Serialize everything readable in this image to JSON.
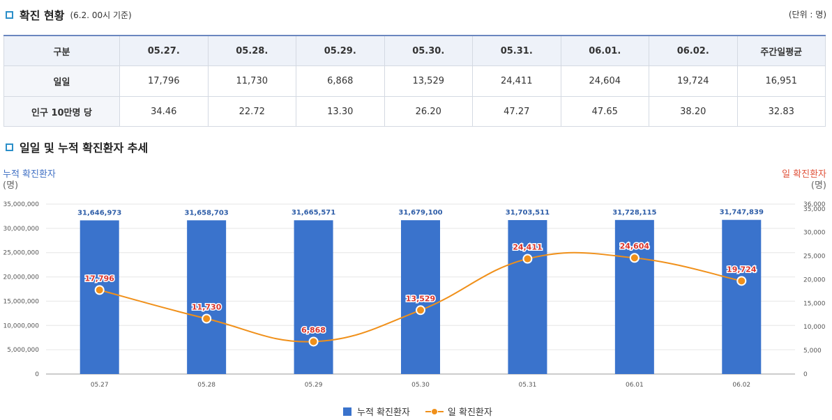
{
  "section1": {
    "title": "확진 현황",
    "subtitle": "(6.2. 00시 기준)",
    "unit": "(단위 : 명)"
  },
  "table": {
    "headers": [
      "구분",
      "05.27.",
      "05.28.",
      "05.29.",
      "05.30.",
      "05.31.",
      "06.01.",
      "06.02.",
      "주간일평균"
    ],
    "rows": [
      {
        "label": "일일",
        "values": [
          "17,796",
          "11,730",
          "6,868",
          "13,529",
          "24,411",
          "24,604",
          "19,724",
          "16,951"
        ]
      },
      {
        "label": "인구 10만명 당",
        "values": [
          "34.46",
          "22.72",
          "13.30",
          "26.20",
          "47.27",
          "47.65",
          "38.20",
          "32.83"
        ]
      }
    ]
  },
  "section2": {
    "title": "일일 및 누적 확진환자 추세"
  },
  "axis": {
    "left_title": "누적 확진환자",
    "left_unit": "(명)",
    "right_title": "일 확진환자",
    "right_unit": "(명)"
  },
  "legend": {
    "bar_label": "누적 확진환자",
    "line_label": "일 확진환자"
  },
  "colors": {
    "bar": "#3a73cc",
    "line": "#f0901a",
    "bar_label": "#2f5ea8",
    "line_label": "#d9342b",
    "accent": "#2b8fc9"
  },
  "chart_data": {
    "type": "bar+line",
    "categories": [
      "05.27",
      "05.28",
      "05.29",
      "05.30",
      "05.31",
      "06.01",
      "06.02"
    ],
    "series": [
      {
        "name": "누적 확진환자",
        "type": "bar",
        "axis": "left",
        "values": [
          31646973,
          31658703,
          31665571,
          31679100,
          31703511,
          31728115,
          31747839
        ],
        "labels": [
          "31,646,973",
          "31,658,703",
          "31,665,571",
          "31,679,100",
          "31,703,511",
          "31,728,115",
          "31,747,839"
        ]
      },
      {
        "name": "일 확진환자",
        "type": "line",
        "axis": "right",
        "values": [
          17796,
          11730,
          6868,
          13529,
          24411,
          24604,
          19724
        ],
        "labels": [
          "17,796",
          "11,730",
          "6,868",
          "13,529",
          "24,411",
          "24,604",
          "19,724"
        ]
      }
    ],
    "y_left": {
      "min": 0,
      "max": 35000000,
      "ticks": [
        "0",
        "5,000,000",
        "10,000,000",
        "15,000,000",
        "20,000,000",
        "25,000,000",
        "30,000,000",
        "35,000,000"
      ]
    },
    "y_right": {
      "min": 0,
      "max": 36000,
      "ticks": [
        0,
        5000,
        10000,
        15000,
        20000,
        25000,
        30000,
        35000,
        36000
      ],
      "tick_labels": [
        "0",
        "5,000",
        "10,000",
        "15,000",
        "20,000",
        "25,000",
        "30,000",
        "35,000",
        "36,000"
      ]
    },
    "grid": true
  }
}
